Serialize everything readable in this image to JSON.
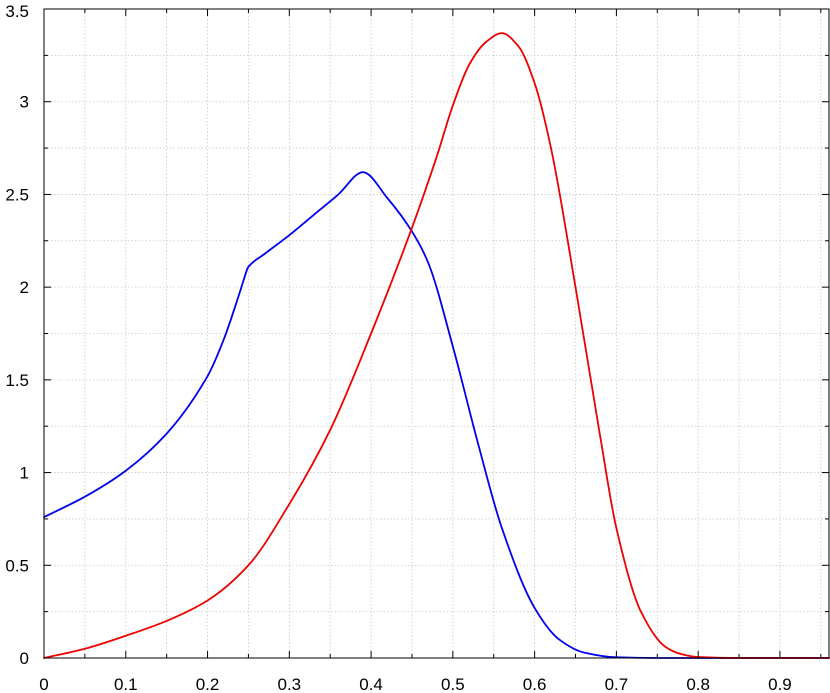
{
  "chart_data": {
    "type": "line",
    "title": "",
    "xlabel": "",
    "ylabel": "",
    "xlim": [
      0,
      0.96
    ],
    "ylim": [
      0,
      3.5
    ],
    "x_ticks": [
      0,
      0.1,
      0.2,
      0.3,
      0.4,
      0.5,
      0.6,
      0.7,
      0.8,
      0.9
    ],
    "x_tick_labels": [
      "0",
      "0.1",
      "0.2",
      "0.3",
      "0.4",
      "0.5",
      "0.6",
      "0.7",
      "0.8",
      "0.9"
    ],
    "y_ticks": [
      0,
      0.5,
      1,
      1.5,
      2,
      2.5,
      3,
      3.5
    ],
    "y_tick_labels": [
      "0",
      "0.5",
      "1",
      "1.5",
      "2",
      "2.5",
      "3",
      "3.5"
    ],
    "grid": true,
    "legend": "none",
    "series": [
      {
        "color": "#0000ee",
        "x": [
          0,
          0.05,
          0.1,
          0.15,
          0.2,
          0.22,
          0.24,
          0.245,
          0.25,
          0.27,
          0.3,
          0.33,
          0.36,
          0.39,
          0.42,
          0.45,
          0.47,
          0.5,
          0.53,
          0.56,
          0.6,
          0.63,
          0.66,
          0.7,
          0.75,
          0.8,
          0.85,
          0.9,
          0.96
        ],
        "y": [
          0.76,
          0.87,
          1.01,
          1.21,
          1.52,
          1.72,
          1.98,
          2.05,
          2.11,
          2.18,
          2.28,
          2.39,
          2.5,
          2.62,
          2.48,
          2.3,
          2.13,
          1.68,
          1.17,
          0.7,
          0.27,
          0.1,
          0.03,
          0.004,
          0,
          0,
          0,
          0,
          0
        ]
      },
      {
        "color": "#ee0000",
        "x": [
          0,
          0.05,
          0.1,
          0.15,
          0.2,
          0.25,
          0.3,
          0.35,
          0.4,
          0.45,
          0.48,
          0.5,
          0.52,
          0.54,
          0.56,
          0.58,
          0.6,
          0.62,
          0.65,
          0.68,
          0.7,
          0.73,
          0.76,
          0.78,
          0.8,
          0.85,
          0.9,
          0.96
        ],
        "y": [
          0,
          0.05,
          0.12,
          0.2,
          0.31,
          0.5,
          0.83,
          1.23,
          1.75,
          2.32,
          2.7,
          2.98,
          3.2,
          3.32,
          3.37,
          3.3,
          3.1,
          2.75,
          2.0,
          1.2,
          0.7,
          0.25,
          0.06,
          0.02,
          0.005,
          0,
          0,
          0
        ]
      }
    ]
  }
}
